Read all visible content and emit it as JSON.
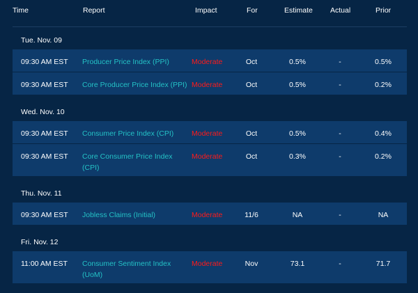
{
  "columns": {
    "time": "Time",
    "report": "Report",
    "impact": "Impact",
    "for": "For",
    "estimate": "Estimate",
    "actual": "Actual",
    "prior": "Prior"
  },
  "groups": [
    {
      "day": "Tue. Nov. 09",
      "rows": [
        {
          "time": "09:30 AM EST",
          "report": "Producer Price Index (PPI)",
          "impact": "Moderate",
          "for": "Oct",
          "estimate": "0.5%",
          "actual": "-",
          "prior": "0.5%"
        },
        {
          "time": "09:30 AM EST",
          "report": "Core Producer Price Index (PPI)",
          "impact": "Moderate",
          "for": "Oct",
          "estimate": "0.5%",
          "actual": "-",
          "prior": "0.2%"
        }
      ]
    },
    {
      "day": "Wed. Nov. 10",
      "rows": [
        {
          "time": "09:30 AM EST",
          "report": "Consumer Price Index (CPI)",
          "impact": "Moderate",
          "for": "Oct",
          "estimate": "0.5%",
          "actual": "-",
          "prior": "0.4%"
        },
        {
          "time": "09:30 AM EST",
          "report": "Core Consumer Price Index (CPI)",
          "impact": "Moderate",
          "for": "Oct",
          "estimate": "0.3%",
          "actual": "-",
          "prior": "0.2%"
        }
      ]
    },
    {
      "day": "Thu. Nov. 11",
      "rows": [
        {
          "time": "09:30 AM EST",
          "report": "Jobless Claims (Initial)",
          "impact": "Moderate",
          "for": "11/6",
          "estimate": "NA",
          "actual": "-",
          "prior": "NA"
        }
      ]
    },
    {
      "day": "Fri. Nov. 12",
      "rows": [
        {
          "time": "11:00 AM EST",
          "report": "Consumer Sentiment Index (UoM)",
          "impact": "Moderate",
          "for": "Nov",
          "estimate": "73.1",
          "actual": "-",
          "prior": "71.7"
        }
      ]
    }
  ],
  "colors": {
    "background": "#062545",
    "row": "#0e3b6b",
    "report_link": "#24c2c6",
    "impact_moderate": "#ff1a1a"
  }
}
